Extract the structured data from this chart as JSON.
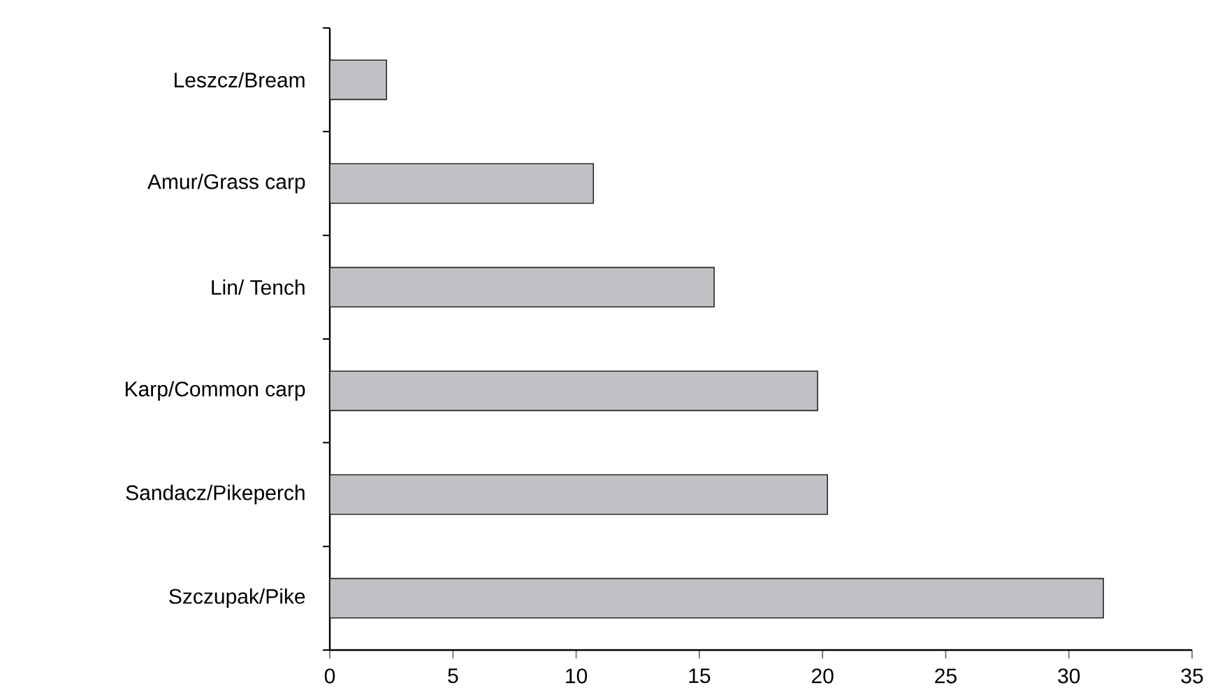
{
  "chart_data": {
    "type": "bar",
    "orientation": "horizontal",
    "categories": [
      "Leszcz/Bream",
      "Amur/Grass carp",
      "Lin/ Tench",
      "Karp/Common carp",
      "Sandacz/Pikeperch",
      "Szczupak/Pike"
    ],
    "values": [
      2.3,
      10.7,
      15.6,
      19.8,
      20.2,
      31.4
    ],
    "color": "#c0c1c5",
    "xlim": [
      0,
      35
    ],
    "xticks": [
      0,
      5,
      10,
      15,
      20,
      25,
      30,
      35
    ],
    "grid": false
  }
}
